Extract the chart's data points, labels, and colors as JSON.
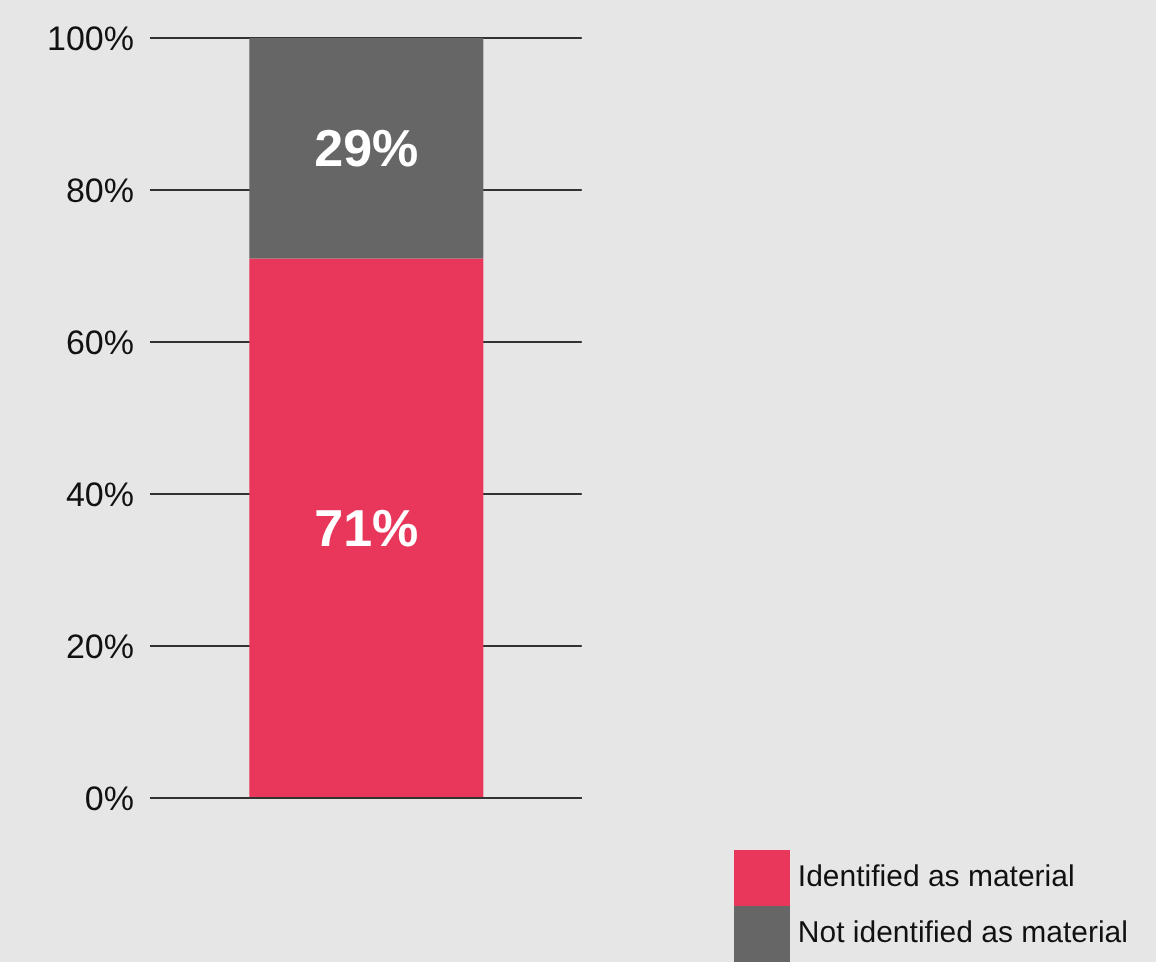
{
  "chart_data": {
    "type": "bar",
    "stacked": true,
    "categories": [
      null
    ],
    "series": [
      {
        "name": "Identified as material",
        "color": "#e8375a",
        "values": [
          71
        ],
        "value_labels": [
          "71%"
        ]
      },
      {
        "name": "Not identified as material",
        "color": "#666666",
        "values": [
          29
        ],
        "value_labels": [
          "29%"
        ]
      }
    ],
    "ylim": [
      0,
      100
    ],
    "yticks": [
      {
        "value": 0,
        "label": "0%"
      },
      {
        "value": 20,
        "label": "20%"
      },
      {
        "value": 40,
        "label": "40%"
      },
      {
        "value": 60,
        "label": "60%"
      },
      {
        "value": 80,
        "label": "80%"
      },
      {
        "value": 100,
        "label": "100%"
      }
    ],
    "grid": "y",
    "legend": "bottom right",
    "tick_labels": "y"
  }
}
